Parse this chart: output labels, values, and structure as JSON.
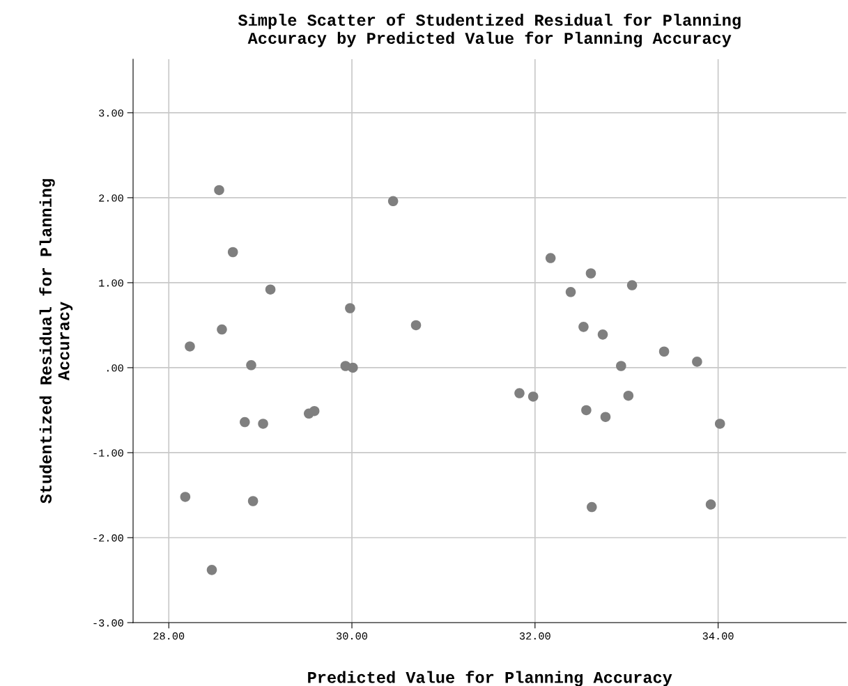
{
  "chart_data": {
    "type": "scatter",
    "title": "Simple Scatter of Studentized Residual for Planning\nAccuracy by Predicted Value for Planning Accuracy",
    "xlabel": "Predicted Value for Planning Accuracy",
    "ylabel": "Studentized Residual for Planning\nAccuracy",
    "x": [
      28.55,
      28.7,
      29.11,
      28.23,
      28.58,
      28.9,
      28.83,
      29.03,
      28.18,
      28.92,
      28.47,
      29.53,
      29.59,
      29.93,
      30.01,
      29.98,
      30.45,
      30.7,
      31.83,
      31.98,
      32.17,
      32.39,
      32.61,
      33.06,
      32.53,
      32.74,
      32.94,
      33.41,
      33.77,
      33.02,
      32.56,
      32.77,
      34.02,
      32.62,
      33.92
    ],
    "values": [
      2.09,
      1.36,
      0.92,
      0.25,
      0.45,
      0.03,
      -0.64,
      -0.66,
      -1.52,
      -1.57,
      -2.38,
      -0.54,
      -0.51,
      0.02,
      0.0,
      0.7,
      1.96,
      0.5,
      -0.3,
      -0.34,
      1.29,
      0.89,
      1.11,
      0.97,
      0.48,
      0.39,
      0.02,
      0.19,
      0.07,
      -0.33,
      -0.5,
      -0.58,
      -0.66,
      -1.64,
      -1.61
    ],
    "color": "#7f7f7f",
    "marker": "circle",
    "xlim": [
      27.61,
      35.4
    ],
    "ylim": [
      -3.0,
      3.63
    ],
    "xticks": [
      {
        "value": 28,
        "label": "28.00"
      },
      {
        "value": 30,
        "label": "30.00"
      },
      {
        "value": 32,
        "label": "32.00"
      },
      {
        "value": 34,
        "label": "34.00"
      }
    ],
    "yticks": [
      {
        "value": -3,
        "label": "-3.00"
      },
      {
        "value": -2,
        "label": "-2.00"
      },
      {
        "value": -1,
        "label": "-1.00"
      },
      {
        "value": 0,
        "label": ".00"
      },
      {
        "value": 1,
        "label": "1.00"
      },
      {
        "value": 2,
        "label": "2.00"
      },
      {
        "value": 3,
        "label": "3.00"
      }
    ],
    "grid": true
  }
}
